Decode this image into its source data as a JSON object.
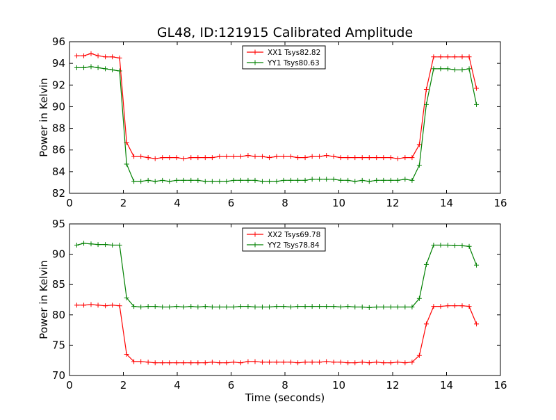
{
  "figure_title": "GL48, ID:121915 Calibrated Amplitude",
  "colors": {
    "xx": "#ff0000",
    "yy": "#008000",
    "axes": "#000000",
    "background": "#ffffff"
  },
  "chart_data": [
    {
      "type": "line",
      "title": "GL48, ID:121915 Calibrated Amplitude",
      "xlabel": "",
      "ylabel": "Power in Kelvin",
      "xlim": [
        0,
        16
      ],
      "ylim": [
        82,
        96
      ],
      "xticks": [
        0,
        2,
        4,
        6,
        8,
        10,
        12,
        14,
        16
      ],
      "yticks": [
        82,
        84,
        86,
        88,
        90,
        92,
        94,
        96
      ],
      "grid": false,
      "legend_position": "top-center",
      "marker": "+",
      "x": [
        0.27,
        0.53,
        0.8,
        1.06,
        1.33,
        1.59,
        1.86,
        2.12,
        2.39,
        2.65,
        2.92,
        3.18,
        3.45,
        3.71,
        3.98,
        4.24,
        4.51,
        4.77,
        5.04,
        5.3,
        5.57,
        5.83,
        6.1,
        6.36,
        6.63,
        6.89,
        7.16,
        7.42,
        7.69,
        7.95,
        8.22,
        8.48,
        8.75,
        9.01,
        9.28,
        9.54,
        9.81,
        10.07,
        10.34,
        10.6,
        10.87,
        11.13,
        11.4,
        11.66,
        11.93,
        12.19,
        12.46,
        12.72,
        12.99,
        13.25,
        13.52,
        13.78,
        14.05,
        14.31,
        14.58,
        14.84,
        15.11
      ],
      "series": [
        {
          "name": "XX1 Tsys82.82",
          "color": "#ff0000",
          "values": [
            94.7,
            94.7,
            94.9,
            94.7,
            94.6,
            94.6,
            94.5,
            86.7,
            85.4,
            85.4,
            85.3,
            85.2,
            85.3,
            85.3,
            85.3,
            85.2,
            85.3,
            85.3,
            85.3,
            85.3,
            85.4,
            85.4,
            85.4,
            85.4,
            85.5,
            85.4,
            85.4,
            85.3,
            85.4,
            85.4,
            85.4,
            85.3,
            85.3,
            85.4,
            85.4,
            85.5,
            85.4,
            85.3,
            85.3,
            85.3,
            85.3,
            85.3,
            85.3,
            85.3,
            85.3,
            85.2,
            85.3,
            85.3,
            86.5,
            91.6,
            94.6,
            94.6,
            94.6,
            94.6,
            94.6,
            94.6,
            91.7
          ]
        },
        {
          "name": "YY1 Tsys80.63",
          "color": "#008000",
          "values": [
            93.6,
            93.6,
            93.7,
            93.6,
            93.5,
            93.4,
            93.3,
            84.7,
            83.1,
            83.1,
            83.2,
            83.1,
            83.2,
            83.1,
            83.2,
            83.2,
            83.2,
            83.2,
            83.1,
            83.1,
            83.1,
            83.1,
            83.2,
            83.2,
            83.2,
            83.2,
            83.1,
            83.1,
            83.1,
            83.2,
            83.2,
            83.2,
            83.2,
            83.3,
            83.3,
            83.3,
            83.3,
            83.2,
            83.2,
            83.1,
            83.2,
            83.1,
            83.2,
            83.2,
            83.2,
            83.2,
            83.3,
            83.2,
            84.6,
            90.2,
            93.5,
            93.5,
            93.5,
            93.4,
            93.4,
            93.5,
            90.2
          ]
        }
      ]
    },
    {
      "type": "line",
      "title": "",
      "xlabel": "Time (seconds)",
      "ylabel": "Power in Kelvin",
      "xlim": [
        0,
        16
      ],
      "ylim": [
        70,
        95
      ],
      "xticks": [
        0,
        2,
        4,
        6,
        8,
        10,
        12,
        14,
        16
      ],
      "yticks": [
        70,
        75,
        80,
        85,
        90,
        95
      ],
      "grid": false,
      "legend_position": "top-center",
      "marker": "+",
      "x": [
        0.27,
        0.53,
        0.8,
        1.06,
        1.33,
        1.59,
        1.86,
        2.12,
        2.39,
        2.65,
        2.92,
        3.18,
        3.45,
        3.71,
        3.98,
        4.24,
        4.51,
        4.77,
        5.04,
        5.3,
        5.57,
        5.83,
        6.1,
        6.36,
        6.63,
        6.89,
        7.16,
        7.42,
        7.69,
        7.95,
        8.22,
        8.48,
        8.75,
        9.01,
        9.28,
        9.54,
        9.81,
        10.07,
        10.34,
        10.6,
        10.87,
        11.13,
        11.4,
        11.66,
        11.93,
        12.19,
        12.46,
        12.72,
        12.99,
        13.25,
        13.52,
        13.78,
        14.05,
        14.31,
        14.58,
        14.84,
        15.11
      ],
      "series": [
        {
          "name": "XX2 Tsys69.78",
          "color": "#ff0000",
          "values": [
            81.6,
            81.6,
            81.7,
            81.6,
            81.5,
            81.6,
            81.5,
            73.5,
            72.3,
            72.3,
            72.2,
            72.1,
            72.1,
            72.1,
            72.1,
            72.1,
            72.1,
            72.1,
            72.1,
            72.2,
            72.1,
            72.1,
            72.2,
            72.1,
            72.3,
            72.3,
            72.2,
            72.2,
            72.2,
            72.2,
            72.2,
            72.1,
            72.2,
            72.2,
            72.2,
            72.3,
            72.2,
            72.2,
            72.1,
            72.1,
            72.2,
            72.1,
            72.2,
            72.1,
            72.1,
            72.2,
            72.1,
            72.2,
            73.3,
            78.5,
            81.4,
            81.4,
            81.5,
            81.5,
            81.5,
            81.4,
            78.5
          ]
        },
        {
          "name": "YY2 Tsys78.84",
          "color": "#008000",
          "values": [
            91.5,
            91.8,
            91.7,
            91.6,
            91.6,
            91.5,
            91.5,
            82.8,
            81.4,
            81.3,
            81.4,
            81.4,
            81.3,
            81.3,
            81.4,
            81.3,
            81.4,
            81.3,
            81.4,
            81.3,
            81.3,
            81.3,
            81.3,
            81.4,
            81.4,
            81.3,
            81.3,
            81.3,
            81.4,
            81.4,
            81.3,
            81.4,
            81.4,
            81.4,
            81.4,
            81.4,
            81.4,
            81.3,
            81.4,
            81.3,
            81.3,
            81.2,
            81.3,
            81.3,
            81.3,
            81.3,
            81.3,
            81.3,
            82.7,
            88.3,
            91.5,
            91.5,
            91.5,
            91.4,
            91.4,
            91.3,
            88.2
          ]
        }
      ]
    }
  ]
}
